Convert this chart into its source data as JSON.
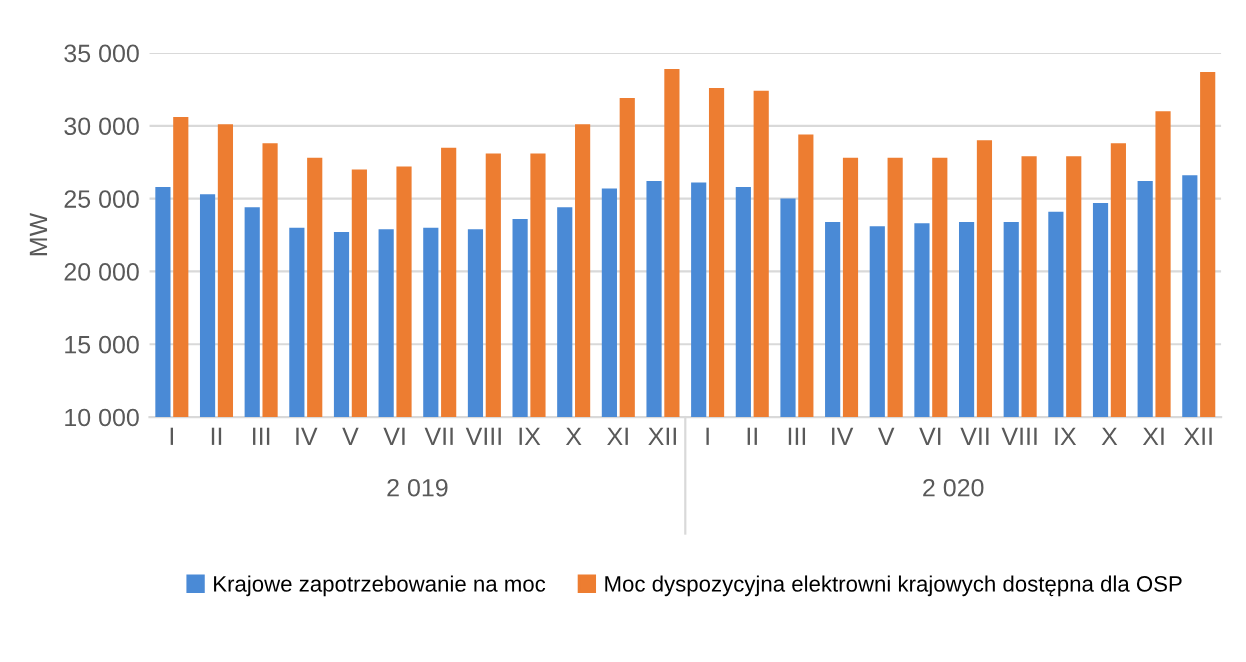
{
  "chart_data": {
    "type": "bar",
    "ylabel": "MW",
    "categories": [
      "I",
      "II",
      "III",
      "IV",
      "V",
      "VI",
      "VII",
      "VIII",
      "IX",
      "X",
      "XI",
      "XII",
      "I",
      "II",
      "III",
      "IV",
      "V",
      "VI",
      "VII",
      "VIII",
      "IX",
      "X",
      "XI",
      "XII"
    ],
    "series": [
      {
        "name": "Krajowe zapotrzebowanie na moc",
        "color": "#4a8ad6",
        "values": [
          25800,
          25300,
          24400,
          23000,
          22700,
          22900,
          23000,
          22900,
          23600,
          24400,
          25700,
          26200,
          26100,
          25800,
          25000,
          23400,
          23100,
          23300,
          23400,
          23400,
          24100,
          24700,
          26200,
          26600
        ]
      },
      {
        "name": "Moc dyspozycyjna elektrowni krajowych dostępna dla OSP",
        "color": "#ed7d31",
        "values": [
          30600,
          30100,
          28800,
          27800,
          27000,
          27200,
          28500,
          28100,
          28100,
          30100,
          31900,
          33900,
          32600,
          32400,
          29400,
          27800,
          27800,
          27800,
          29000,
          27900,
          27900,
          28800,
          31000,
          33700
        ]
      }
    ],
    "annotations": [
      "2 019",
      "2 020"
    ],
    "ylim": [
      10000,
      35000
    ],
    "yticks": [
      {
        "value": 10000,
        "label": "10 000"
      },
      {
        "value": 15000,
        "label": "15 000"
      },
      {
        "value": 20000,
        "label": "20 000"
      },
      {
        "value": 25000,
        "label": "25 000"
      },
      {
        "value": 30000,
        "label": "30 000"
      },
      {
        "value": 35000,
        "label": "35 000"
      }
    ],
    "grid": "y",
    "legend": "bottom"
  }
}
